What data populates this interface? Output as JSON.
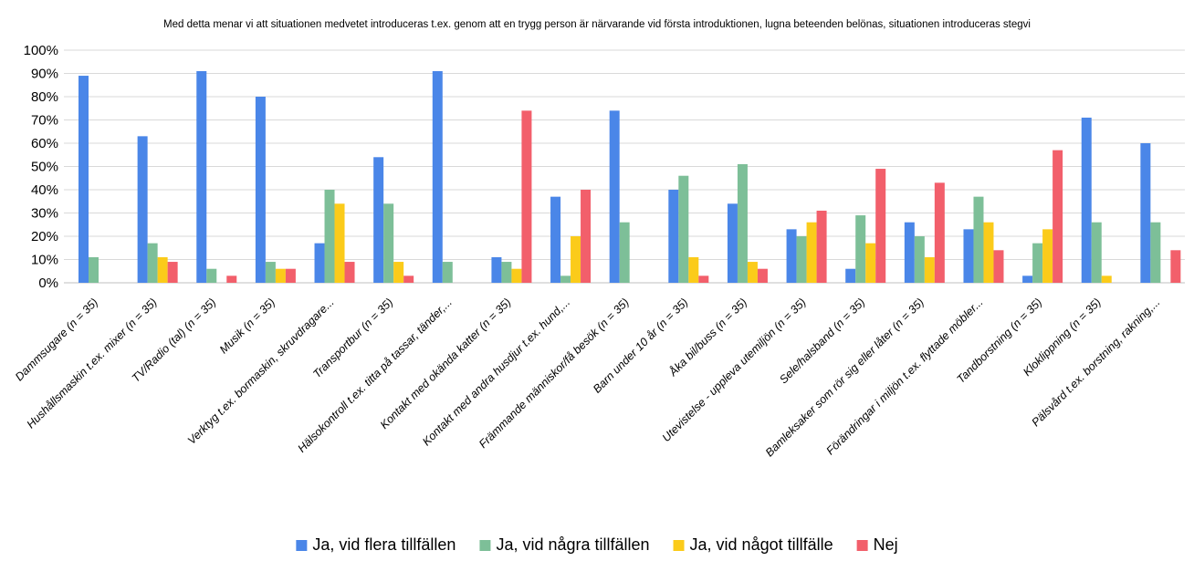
{
  "chart_data": {
    "type": "bar",
    "title": "Med detta menar vi att situationen medvetet introduceras t.ex. genom att en trygg person är närvarande vid första introduktionen, lugna beteenden belönas, situationen introduceras stegvi",
    "xlabel": "",
    "ylabel": "",
    "ylim": [
      0,
      100
    ],
    "yticks": [
      "0%",
      "10%",
      "20%",
      "30%",
      "40%",
      "50%",
      "60%",
      "70%",
      "80%",
      "90%",
      "100%"
    ],
    "grid": true,
    "legend_position": "bottom",
    "categories": [
      "Dammsugare (n = 35)",
      "Hushållsmaskin t.ex. mixer (n = 35)",
      "TV/Radio (tal) (n = 35)",
      "Musik (n = 35)",
      "Verktyg t.ex. bormaskin, skruvdragare...",
      "Transportbur (n = 35)",
      "Hälsokontroll t.ex. titta på tassar, tänder,...",
      "Kontakt med okända katter (n = 35)",
      "Kontakt med andra husdjur t.ex. hund,...",
      "Främmande människor/få besök (n = 35)",
      "Barn under 10 år (n = 35)",
      "Åka bil/buss (n = 35)",
      "Utevistelse - uppleva utemiljön (n = 35)",
      "Sele/halsband (n = 35)",
      "Bamleksaker som rör sig eller låter (n = 35)",
      "Förändringar i miljön t.ex. flyttade möbler...",
      "Tandborstning (n = 35)",
      "Kloklippning (n = 35)",
      "Pälsvård t.ex. borstning, rakning,..."
    ],
    "series": [
      {
        "name": "Ja, vid flera tillfällen",
        "color": "#4a86e8",
        "values": [
          89,
          63,
          91,
          80,
          17,
          54,
          91,
          11,
          37,
          74,
          40,
          34,
          23,
          6,
          26,
          23,
          3,
          71,
          60
        ]
      },
      {
        "name": "Ja, vid några tillfällen",
        "color": "#7dbf98",
        "values": [
          11,
          17,
          6,
          9,
          40,
          34,
          9,
          9,
          3,
          26,
          46,
          51,
          20,
          29,
          20,
          37,
          17,
          26,
          26
        ]
      },
      {
        "name": "Ja, vid något tillfälle",
        "color": "#fbcb1a",
        "values": [
          0,
          11,
          0,
          6,
          34,
          9,
          0,
          6,
          20,
          0,
          11,
          9,
          26,
          17,
          11,
          26,
          23,
          3,
          0
        ]
      },
      {
        "name": "Nej",
        "color": "#f25f6b",
        "values": [
          0,
          9,
          3,
          6,
          9,
          3,
          0,
          74,
          40,
          0,
          3,
          6,
          31,
          49,
          43,
          14,
          57,
          0,
          14
        ]
      }
    ]
  }
}
